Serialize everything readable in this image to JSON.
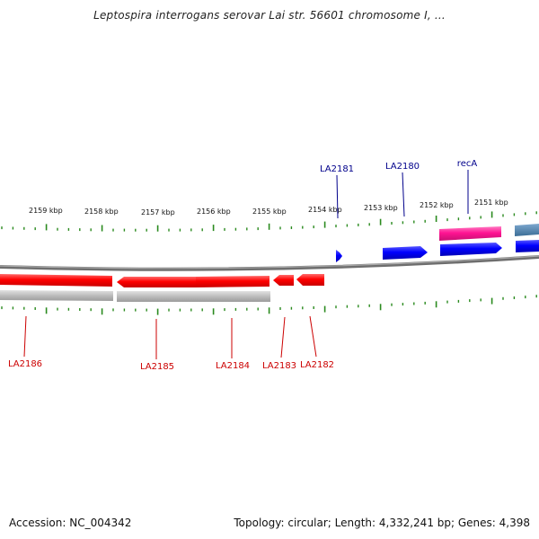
{
  "title": "Leptospira interrogans serovar Lai str. 56601 chromosome I, ...",
  "colors": {
    "tick": "#2a8a1e",
    "backbone": "#808080",
    "forward_gene": "#0000ff",
    "reverse_gene": "#ff0000",
    "recA_gene": "#ff1493",
    "steelblue_gene": "#4682b4",
    "shadow": "#bdbdbd",
    "forward_label": "#00008b",
    "reverse_label": "#cc0000"
  },
  "scale_labels": [
    "2159 kbp",
    "2158 kbp",
    "2157 kbp",
    "2156 kbp",
    "2155 kbp",
    "2154 kbp",
    "2153 kbp",
    "2152 kbp",
    "2151 kbp"
  ],
  "forward_genes": [
    {
      "name": "LA2181"
    },
    {
      "name": "LA2180"
    },
    {
      "name": "recA"
    }
  ],
  "reverse_genes": [
    {
      "name": "LA2186"
    },
    {
      "name": "LA2185"
    },
    {
      "name": "LA2184"
    },
    {
      "name": "LA2183"
    },
    {
      "name": "LA2182"
    }
  ],
  "footer": {
    "accession": "Accession: NC_004342",
    "stats": "Topology: circular; Length: 4,332,241 bp; Genes: 4,398"
  }
}
